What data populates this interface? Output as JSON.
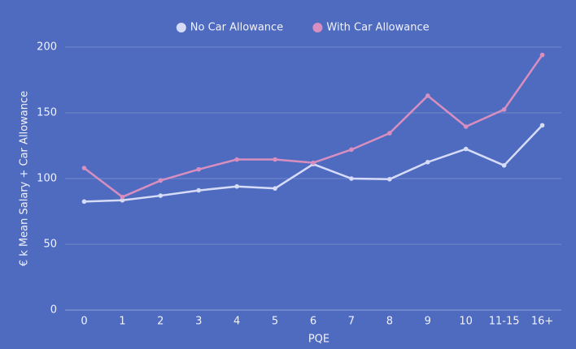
{
  "chart_data": {
    "type": "line",
    "x_label": "PQE",
    "y_label": "€ k Mean Salary + Car Allowance",
    "categories": [
      "0",
      "1",
      "2",
      "3",
      "4",
      "5",
      "6",
      "7",
      "8",
      "9",
      "10",
      "11-15",
      "16+"
    ],
    "series": [
      {
        "name": "No Car Allowance",
        "color": "#d6dcf7",
        "values": [
          82.5,
          83.5,
          87,
          91,
          94,
          92.5,
          111,
          100,
          99.5,
          112.5,
          122.5,
          110,
          140.5
        ]
      },
      {
        "name": "With Car Allowance",
        "color": "#d88fbf",
        "values": [
          108,
          86,
          98.5,
          107,
          114.5,
          114.5,
          112,
          122,
          134.5,
          163,
          139.5,
          152.5,
          194
        ]
      }
    ],
    "ylim": [
      0,
      200
    ],
    "yticks": [
      0,
      50,
      100,
      150,
      200
    ],
    "grid": true,
    "legend": "top"
  }
}
